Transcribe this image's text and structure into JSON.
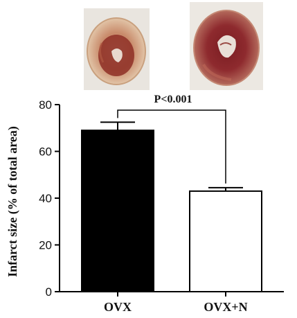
{
  "chart_data": {
    "type": "bar",
    "categories": [
      "OVX",
      "OVX+N"
    ],
    "values": [
      69,
      43
    ],
    "errors": [
      3.5,
      1.5
    ],
    "bar_colors": [
      "#000000",
      "#ffffff"
    ],
    "ylabel": "Infarct size (% of total area)",
    "ylim": [
      0,
      80
    ],
    "yticks": [
      0,
      20,
      40,
      60,
      80
    ],
    "annotation": "P<0.001",
    "grid": false
  },
  "images": [
    {
      "name": "heart-section-ovx"
    },
    {
      "name": "heart-section-ovx-n"
    }
  ]
}
